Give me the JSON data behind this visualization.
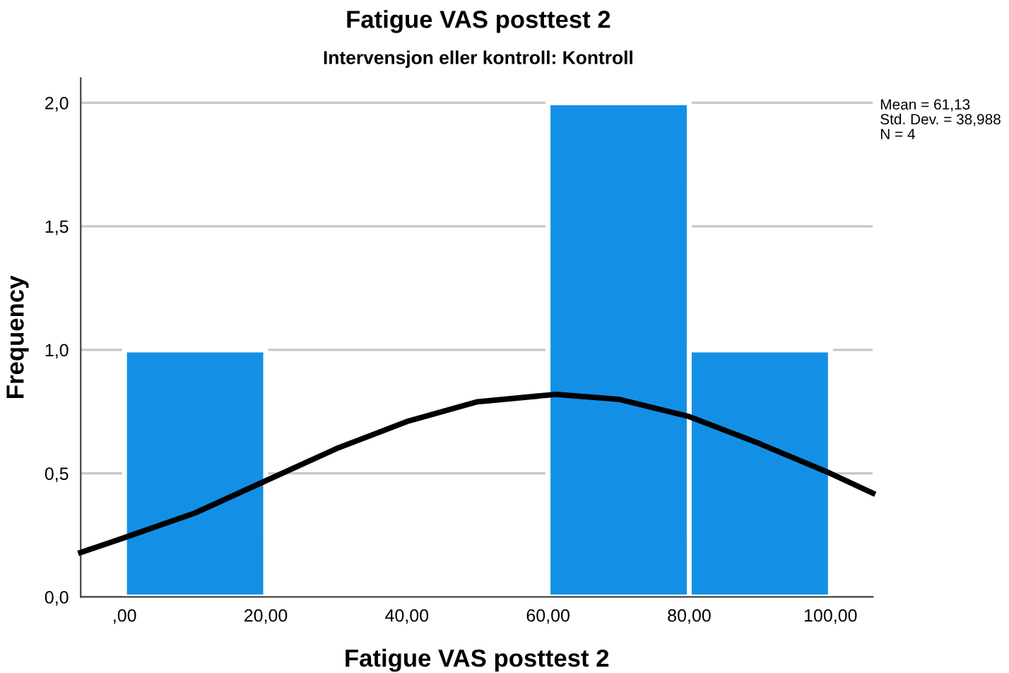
{
  "chart_data": {
    "type": "histogram",
    "title": "Fatigue VAS posttest 2",
    "subtitle": "Intervensjon eller kontroll: Kontroll",
    "xlabel": "Fatigue VAS posttest 2",
    "ylabel": "Frequency",
    "bins": [
      0,
      20,
      40,
      60,
      80,
      100
    ],
    "values": [
      1,
      0,
      0,
      2,
      1
    ],
    "color": "#1390e6",
    "series": [
      {
        "type": "line",
        "color": "#000000",
        "x": [
          -6.2,
          0,
          10,
          20,
          30,
          40,
          50,
          61.13,
          70,
          80,
          90,
          100,
          106
        ],
        "values": [
          0.18,
          0.24,
          0.34,
          0.47,
          0.6,
          0.71,
          0.79,
          0.82,
          0.8,
          0.73,
          0.62,
          0.5,
          0.42
        ]
      }
    ],
    "xlim": [
      -6.2,
      106
    ],
    "ylim": [
      0,
      2.1
    ],
    "xticks": [
      {
        "value": 0,
        "label": ",00"
      },
      {
        "value": 20,
        "label": "20,00"
      },
      {
        "value": 40,
        "label": "40,00"
      },
      {
        "value": 60,
        "label": "60,00"
      },
      {
        "value": 80,
        "label": "80,00"
      },
      {
        "value": 100,
        "label": "100,00"
      }
    ],
    "yticks": [
      {
        "value": 0,
        "label": "0,0"
      },
      {
        "value": 0.5,
        "label": "0,5"
      },
      {
        "value": 1,
        "label": "1,0"
      },
      {
        "value": 1.5,
        "label": "1,5"
      },
      {
        "value": 2,
        "label": "2,0"
      }
    ],
    "grid": "y",
    "legend": false,
    "annotations": [
      "Mean = 61,13",
      "Std. Dev. = 38,988",
      "N = 4"
    ]
  }
}
